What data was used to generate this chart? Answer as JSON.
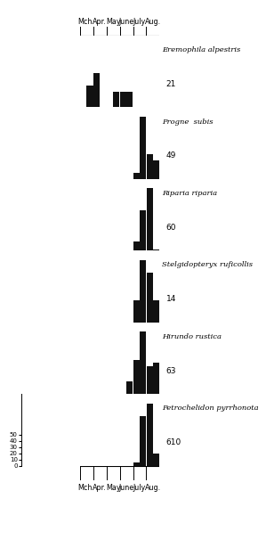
{
  "species": [
    {
      "name": "Eremophila alpestris",
      "n": "21",
      "bars": [
        0,
        35,
        55,
        0,
        0,
        25,
        25,
        25,
        0,
        0,
        0,
        0
      ]
    },
    {
      "name": "Progne  subis",
      "n": "49",
      "bars": [
        0,
        0,
        0,
        0,
        0,
        0,
        0,
        0,
        10,
        100,
        40,
        30
      ]
    },
    {
      "name": "Riparia riparia",
      "n": "60",
      "bars": [
        0,
        0,
        0,
        0,
        0,
        0,
        0,
        0,
        15,
        65,
        100,
        2
      ]
    },
    {
      "name": "Stelgidopteryx ruficollis",
      "n": "14",
      "bars": [
        0,
        0,
        0,
        0,
        0,
        0,
        0,
        0,
        35,
        100,
        80,
        35
      ]
    },
    {
      "name": "Hirundo rustica",
      "n": "63",
      "bars": [
        0,
        0,
        0,
        0,
        0,
        0,
        0,
        20,
        55,
        100,
        45,
        50
      ]
    },
    {
      "name": "Petrochelidon pyrrhonota",
      "n": "610",
      "bars": [
        0,
        0,
        0,
        0,
        0,
        0,
        0,
        0,
        5,
        80,
        100,
        20
      ]
    }
  ],
  "n_bins": 12,
  "bar_color": "#111111",
  "bg_color": "#ffffff",
  "scale_ticks": [
    0,
    10,
    20,
    30,
    40,
    50
  ],
  "month_labels": [
    "Mch.",
    "Apr.",
    "May",
    "June",
    "July",
    "Aug."
  ],
  "month_bin_edges": [
    0,
    2,
    4,
    6,
    8,
    10,
    12
  ],
  "bar_width": 1.0
}
